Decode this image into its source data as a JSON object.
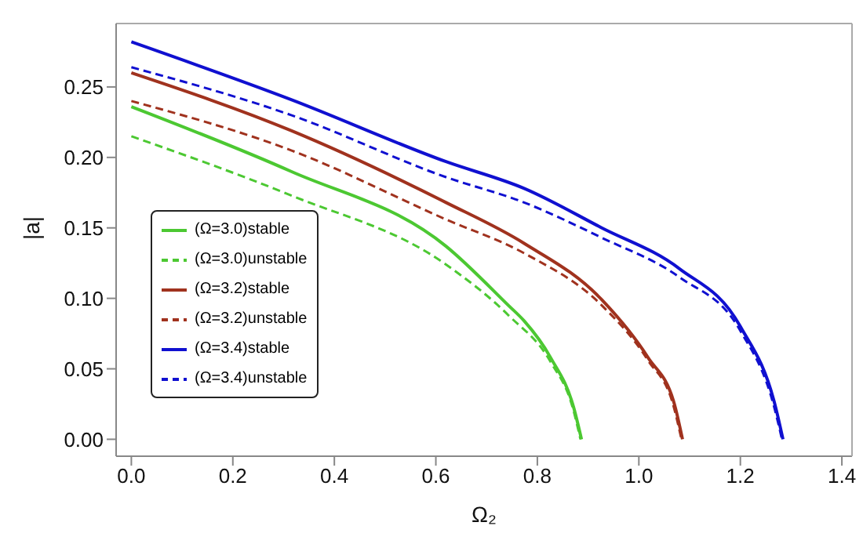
{
  "chart_data": {
    "type": "line",
    "xlabel": "Ω₂",
    "ylabel": "|a|",
    "xlim": [
      -0.03,
      1.42
    ],
    "ylim": [
      -0.012,
      0.295
    ],
    "xticks": [
      {
        "value": 0,
        "label": "0.0"
      },
      {
        "value": 0.2,
        "label": "0.2"
      },
      {
        "value": 0.4,
        "label": "0.4"
      },
      {
        "value": 0.6,
        "label": "0.6"
      },
      {
        "value": 0.8,
        "label": "0.8"
      },
      {
        "value": 1,
        "label": "1.0"
      },
      {
        "value": 1.2,
        "label": "1.2"
      },
      {
        "value": 1.4,
        "label": "1.4"
      }
    ],
    "yticks": [
      {
        "value": 0,
        "label": "0.00"
      },
      {
        "value": 0.05,
        "label": "0.05"
      },
      {
        "value": 0.1,
        "label": "0.10"
      },
      {
        "value": 0.15,
        "label": "0.15"
      },
      {
        "value": 0.2,
        "label": "0.20"
      },
      {
        "value": 0.25,
        "label": "0.25"
      }
    ],
    "grid": false,
    "legend": "bottom left",
    "marker": "none",
    "series": [
      {
        "name": "(Ω=3.0)stable",
        "color": "#4cc832",
        "line_style": "solid",
        "x": [
          0,
          0.315,
          0.62,
          0.743,
          0.774,
          0.826,
          0.872,
          0.887
        ],
        "values": [
          0.236,
          0.19,
          0.137,
          0.095,
          0.084,
          0.058,
          0.022,
          0
        ]
      },
      {
        "name": "(Ω=3.0)unstable",
        "color": "#4cc832",
        "line_style": "dashed",
        "x": [
          0,
          0.315,
          0.62,
          0.743,
          0.826,
          0.87,
          0.885
        ],
        "values": [
          0.215,
          0.173,
          0.124,
          0.088,
          0.055,
          0.022,
          0
        ]
      },
      {
        "name": "(Ω=3.2)stable",
        "color": "#a0321e",
        "line_style": "solid",
        "x": [
          0,
          0.315,
          0.62,
          0.774,
          0.927,
          1.018,
          1.07,
          1.086
        ],
        "values": [
          0.26,
          0.219,
          0.168,
          0.139,
          0.099,
          0.058,
          0.025,
          0
        ]
      },
      {
        "name": "(Ω=3.2)unstable",
        "color": "#a0321e",
        "line_style": "dashed",
        "x": [
          0,
          0.315,
          0.62,
          0.774,
          0.927,
          1.018,
          1.068,
          1.084
        ],
        "values": [
          0.24,
          0.205,
          0.156,
          0.132,
          0.095,
          0.056,
          0.024,
          0
        ]
      },
      {
        "name": "(Ω=3.4)stable",
        "color": "#1010d0",
        "line_style": "solid",
        "x": [
          0,
          0.315,
          0.62,
          0.774,
          0.927,
          1.08,
          1.2,
          1.27,
          1.284
        ],
        "values": [
          0.282,
          0.241,
          0.197,
          0.178,
          0.15,
          0.121,
          0.08,
          0.022,
          0
        ]
      },
      {
        "name": "(Ω=3.4)unstable",
        "color": "#1010d0",
        "line_style": "dashed",
        "x": [
          0,
          0.315,
          0.62,
          0.774,
          0.927,
          1.08,
          1.2,
          1.268,
          1.282
        ],
        "values": [
          0.264,
          0.23,
          0.186,
          0.168,
          0.143,
          0.115,
          0.077,
          0.021,
          0
        ]
      }
    ]
  }
}
